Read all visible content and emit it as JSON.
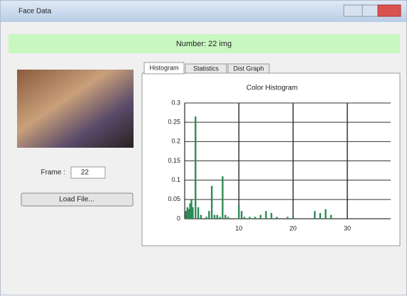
{
  "window": {
    "title": "Face Data"
  },
  "banner": "Number: 22 img",
  "controls": {
    "frame_label": "Frame :",
    "frame_value": "22",
    "button": "Load File..."
  },
  "tabs": [
    "Histogram",
    "Statistics",
    "Dist Graph"
  ],
  "chart_data": {
    "type": "bar",
    "title": "Color Histogram",
    "color": "#2e8b57",
    "grid": true,
    "x": [
      0.25,
      0.5,
      0.75,
      1,
      1.25,
      1.5,
      2,
      2.5,
      3,
      4,
      4.5,
      5,
      5.5,
      6,
      6.5,
      7,
      7.5,
      8,
      10,
      10.5,
      11,
      12,
      13,
      14,
      15,
      16,
      17,
      19,
      20,
      24,
      25,
      26,
      27
    ],
    "values": [
      0.02,
      0.03,
      0.025,
      0.04,
      0.05,
      0.03,
      0.265,
      0.03,
      0.01,
      0.005,
      0.02,
      0.085,
      0.01,
      0.01,
      0.005,
      0.11,
      0.01,
      0.005,
      0.035,
      0.02,
      0.005,
      0.005,
      0.005,
      0.01,
      0.02,
      0.015,
      0.005,
      0.005,
      0.005,
      0.02,
      0.015,
      0.025,
      0.01
    ],
    "xlim": [
      0,
      38
    ],
    "xticks": [
      10,
      20,
      30
    ],
    "ylim": [
      0,
      0.3
    ],
    "yticks": [
      0,
      0.05,
      0.1,
      0.15,
      0.2,
      0.25,
      0.3
    ]
  }
}
